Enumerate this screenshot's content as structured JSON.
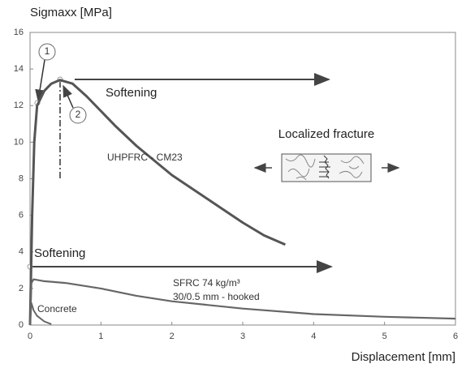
{
  "chart_data": {
    "type": "line",
    "y_label": "Sigmaxx [MPa]",
    "x_label": "Displacement [mm]",
    "xlim": [
      0,
      6
    ],
    "ylim": [
      0,
      16
    ],
    "xticks": [
      0,
      1,
      2,
      3,
      4,
      5,
      6
    ],
    "yticks": [
      0,
      2,
      4,
      6,
      8,
      10,
      12,
      14,
      16
    ],
    "grid": false,
    "series": [
      {
        "name": "UHPFRC - CM23",
        "color": "#555555",
        "x": [
          0,
          0.03,
          0.06,
          0.1,
          0.2,
          0.3,
          0.42,
          0.6,
          0.8,
          1.0,
          1.2,
          1.5,
          2.0,
          2.5,
          3.0,
          3.3,
          3.6
        ],
        "values": [
          0,
          6,
          10,
          12,
          12.8,
          13.2,
          13.4,
          13.2,
          12.5,
          11.7,
          10.9,
          9.8,
          8.2,
          6.9,
          5.6,
          4.9,
          4.4
        ]
      },
      {
        "name": "SFRC 74 kg/m³",
        "color": "#666666",
        "x": [
          0,
          0.02,
          0.05,
          0.2,
          0.5,
          1,
          1.5,
          2,
          3,
          4,
          5,
          6
        ],
        "values": [
          0,
          2.3,
          2.5,
          2.4,
          2.3,
          2.0,
          1.6,
          1.3,
          0.9,
          0.6,
          0.45,
          0.35
        ]
      },
      {
        "name": "Concrete",
        "color": "#666666",
        "x": [
          0,
          0.02,
          0.05,
          0.1,
          0.2,
          0.3
        ],
        "values": [
          0,
          1.2,
          0.8,
          0.5,
          0.2,
          0.05
        ]
      }
    ],
    "annotations": [
      "Softening",
      "Softening",
      "Localized fracture",
      "30/0.5 mm - hooked",
      "1",
      "2"
    ]
  }
}
